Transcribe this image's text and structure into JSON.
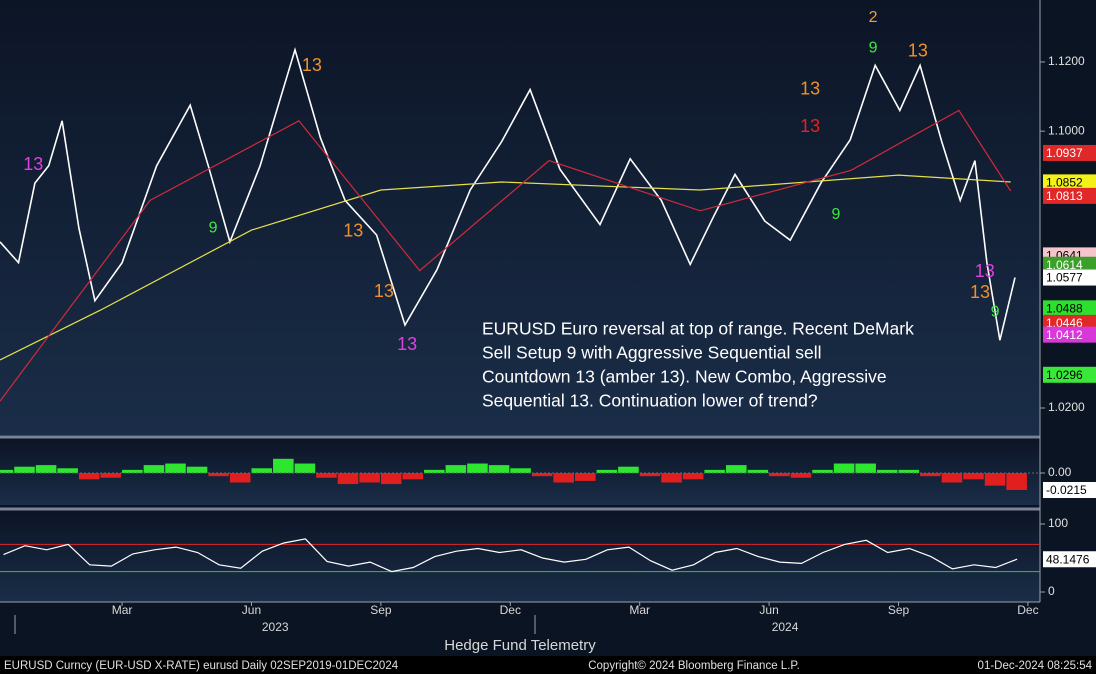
{
  "chart_data": [
    {
      "type": "line",
      "xlim": [
        -0.83,
        23.28
      ],
      "ylim": [
        1.0122,
        1.1379
      ],
      "xticks": [
        {
          "value": 2,
          "label": "Mar"
        },
        {
          "value": 5,
          "label": "Jun"
        },
        {
          "value": 8,
          "label": "Sep"
        },
        {
          "value": 11,
          "label": "Dec"
        },
        {
          "value": 14,
          "label": "Mar"
        },
        {
          "value": 17,
          "label": "Jun"
        },
        {
          "value": 20,
          "label": "Sep"
        },
        {
          "value": 23,
          "label": "Dec"
        }
      ],
      "year_labels": [
        {
          "value": 5.55,
          "label": "2023"
        },
        {
          "value": 17.37,
          "label": "2024"
        }
      ],
      "yticks": [
        {
          "value": 1.12,
          "label": "1.1200"
        },
        {
          "value": 1.1,
          "label": "1.1000"
        },
        {
          "value": 1.02,
          "label": "1.0200"
        }
      ],
      "series": [
        {
          "color": "#ffffff",
          "x": [
            -0.83,
            -0.4,
            -0.02,
            0.3,
            0.61,
            1.0,
            1.37,
            2.0,
            2.8,
            3.58,
            4.0,
            4.5,
            5.2,
            6.01,
            6.6,
            7.17,
            7.9,
            8.56,
            9.3,
            10.07,
            10.8,
            11.46,
            12.15,
            13.08,
            13.78,
            14.5,
            15.17,
            15.7,
            16.21,
            16.9,
            17.49,
            18.2,
            18.88,
            19.46,
            20.03,
            20.5,
            21.0,
            21.43,
            21.77,
            22.05,
            22.35,
            22.7
          ],
          "values": [
            1.068,
            1.062,
            1.085,
            1.09,
            1.103,
            1.072,
            1.051,
            1.062,
            1.09,
            1.1075,
            1.09,
            1.068,
            1.09,
            1.1235,
            1.098,
            1.08,
            1.07,
            1.044,
            1.06,
            1.083,
            1.097,
            1.112,
            1.089,
            1.073,
            1.092,
            1.08,
            1.0615,
            1.075,
            1.0875,
            1.074,
            1.0685,
            1.085,
            1.0975,
            1.119,
            1.106,
            1.119,
            1.097,
            1.08,
            1.0915,
            1.062,
            1.0396,
            1.0577
          ]
        },
        {
          "color": "#e6e04a",
          "x": [
            -0.83,
            1.5,
            5.0,
            8.0,
            10.8,
            15.4,
            20.0,
            22.6
          ],
          "values": [
            1.0339,
            1.0483,
            1.0714,
            1.083,
            1.0853,
            1.083,
            1.0873,
            1.0853
          ]
        },
        {
          "color": "#d22a3a",
          "x": [
            -0.83,
            2.65,
            6.1,
            8.9,
            11.9,
            15.4,
            18.9,
            21.4,
            22.6
          ],
          "values": [
            1.022,
            1.08,
            1.103,
            1.0597,
            1.0915,
            1.077,
            1.0887,
            1.106,
            1.0827
          ]
        }
      ],
      "counts": [
        {
          "label": "2",
          "x": 19.41,
          "y": 1.1327,
          "color": "#f0a030"
        },
        {
          "label": "9",
          "x": 19.41,
          "y": 1.124,
          "color": "#3ee83e"
        },
        {
          "label": "13",
          "x": 20.45,
          "y": 1.1229,
          "color": "#f0902a"
        },
        {
          "label": "13",
          "x": 6.4,
          "y": 1.1188,
          "color": "#f0902a"
        },
        {
          "label": "13",
          "x": 17.95,
          "y": 1.1119,
          "color": "#f0902a"
        },
        {
          "label": "13",
          "x": 17.95,
          "y": 1.1012,
          "color": "#e82020"
        },
        {
          "label": "13",
          "x": 8.61,
          "y": 1.0382,
          "color": "#e040e0"
        },
        {
          "label": "13",
          "x": 7.36,
          "y": 1.0709,
          "color": "#f0902a"
        },
        {
          "label": "13",
          "x": 8.07,
          "y": 1.0535,
          "color": "#f0902a"
        },
        {
          "label": "13",
          "x": -0.06,
          "y": 1.0902,
          "color": "#e040e0"
        },
        {
          "label": "9",
          "x": 4.11,
          "y": 1.072,
          "color": "#3ee83e"
        },
        {
          "label": "9",
          "x": 18.55,
          "y": 1.0758,
          "color": "#3ee83e"
        },
        {
          "label": "13",
          "x": 21.89,
          "y": 1.0532,
          "color": "#f0902a"
        },
        {
          "label": "9",
          "x": 22.24,
          "y": 1.0477,
          "color": "#3ee83e"
        },
        {
          "label": "13",
          "x": 22.0,
          "y": 1.0593,
          "color": "#e040e0"
        }
      ],
      "price_tags": [
        {
          "value": 1.0937,
          "color": "#e02828"
        },
        {
          "value": 1.0852,
          "color": "#f2f21a"
        },
        {
          "value": 1.0813,
          "color": "#e02828"
        },
        {
          "value": 1.0641,
          "color": "#f4c6cc"
        },
        {
          "value": 1.0614,
          "color": "#3aa02a"
        },
        {
          "value": 1.0577,
          "color": "#ffffff"
        },
        {
          "value": 1.0488,
          "color": "#2ee02e"
        },
        {
          "value": 1.0446,
          "color": "#e02828"
        },
        {
          "value": 1.0412,
          "color": "#d838d8"
        },
        {
          "value": 1.0296,
          "color": "#3ae83a"
        }
      ],
      "annotation": [
        "EURUSD Euro reversal at top of range.  Recent DeMark",
        "Sell Setup 9 with Aggressive Sequential sell",
        "Countdown 13 (amber 13). New Combo, Aggressive",
        "Sequential 13.  Continuation lower of trend?"
      ]
    },
    {
      "type": "histogram-bar",
      "ylim": [
        -0.0405,
        0.0418
      ],
      "yticks": [
        {
          "value": 0,
          "label": "0.00"
        }
      ],
      "x": [
        -0.75,
        -0.25,
        0.25,
        0.75,
        1.25,
        1.75,
        2.25,
        2.75,
        3.25,
        3.75,
        4.25,
        4.75,
        5.25,
        5.75,
        6.25,
        6.75,
        7.25,
        7.75,
        8.25,
        8.75,
        9.25,
        9.75,
        10.25,
        10.75,
        11.25,
        11.75,
        12.25,
        12.75,
        13.25,
        13.75,
        14.25,
        14.75,
        15.25,
        15.75,
        16.25,
        16.75,
        17.25,
        17.75,
        18.25,
        18.75,
        19.25,
        19.75,
        20.25,
        20.75,
        21.25,
        21.75,
        22.25,
        22.75
      ],
      "values": [
        0.004,
        0.008,
        0.01,
        0.006,
        -0.008,
        -0.006,
        0.004,
        0.01,
        0.012,
        0.008,
        -0.004,
        -0.012,
        0.006,
        0.018,
        0.012,
        -0.006,
        -0.014,
        -0.012,
        -0.014,
        -0.008,
        0.004,
        0.01,
        0.012,
        0.01,
        0.006,
        -0.004,
        -0.012,
        -0.01,
        0.004,
        0.008,
        -0.004,
        -0.012,
        -0.008,
        0.004,
        0.01,
        0.004,
        -0.004,
        -0.006,
        0.004,
        0.012,
        0.012,
        0.004,
        0.004,
        -0.004,
        -0.012,
        -0.008,
        -0.016,
        -0.0215
      ],
      "pos_color": "#2ee62e",
      "neg_color": "#e21f1f",
      "last_tag": -0.0215
    },
    {
      "type": "line",
      "ylim": [
        -14.7,
        117.6
      ],
      "yticks": [
        100,
        0
      ],
      "levels": [
        {
          "value": 70,
          "color": "#e02828"
        },
        {
          "value": 30,
          "color": "#2ec82e"
        }
      ],
      "x": [
        -0.75,
        -0.25,
        0.25,
        0.75,
        1.25,
        1.75,
        2.25,
        2.75,
        3.25,
        3.75,
        4.25,
        4.75,
        5.25,
        5.75,
        6.25,
        6.75,
        7.25,
        7.75,
        8.25,
        8.75,
        9.25,
        9.75,
        10.25,
        10.75,
        11.25,
        11.75,
        12.25,
        12.75,
        13.25,
        13.75,
        14.25,
        14.75,
        15.25,
        15.75,
        16.25,
        16.75,
        17.25,
        17.75,
        18.25,
        18.75,
        19.25,
        19.75,
        20.25,
        20.75,
        21.25,
        21.75,
        22.25,
        22.75
      ],
      "values": [
        55,
        68,
        62,
        70,
        40,
        38,
        56,
        62,
        66,
        58,
        40,
        35,
        60,
        72,
        78,
        45,
        38,
        44,
        30,
        36,
        52,
        60,
        64,
        58,
        62,
        50,
        44,
        48,
        62,
        66,
        46,
        32,
        40,
        58,
        64,
        52,
        44,
        42,
        58,
        70,
        76,
        58,
        64,
        52,
        34,
        40,
        36,
        48.1476
      ],
      "color": "#ffffff",
      "last_tag": 48.1476
    }
  ],
  "page": {
    "title": "Hedge Fund Telemetry",
    "footer_left": "EURUSD Curncy (EUR-USD X-RATE) eurusd  Daily 02SEP2019-01DEC2024",
    "footer_center": "Copyright© 2024 Bloomberg Finance L.P.",
    "footer_right": "01-Dec-2024 08:25:54"
  }
}
